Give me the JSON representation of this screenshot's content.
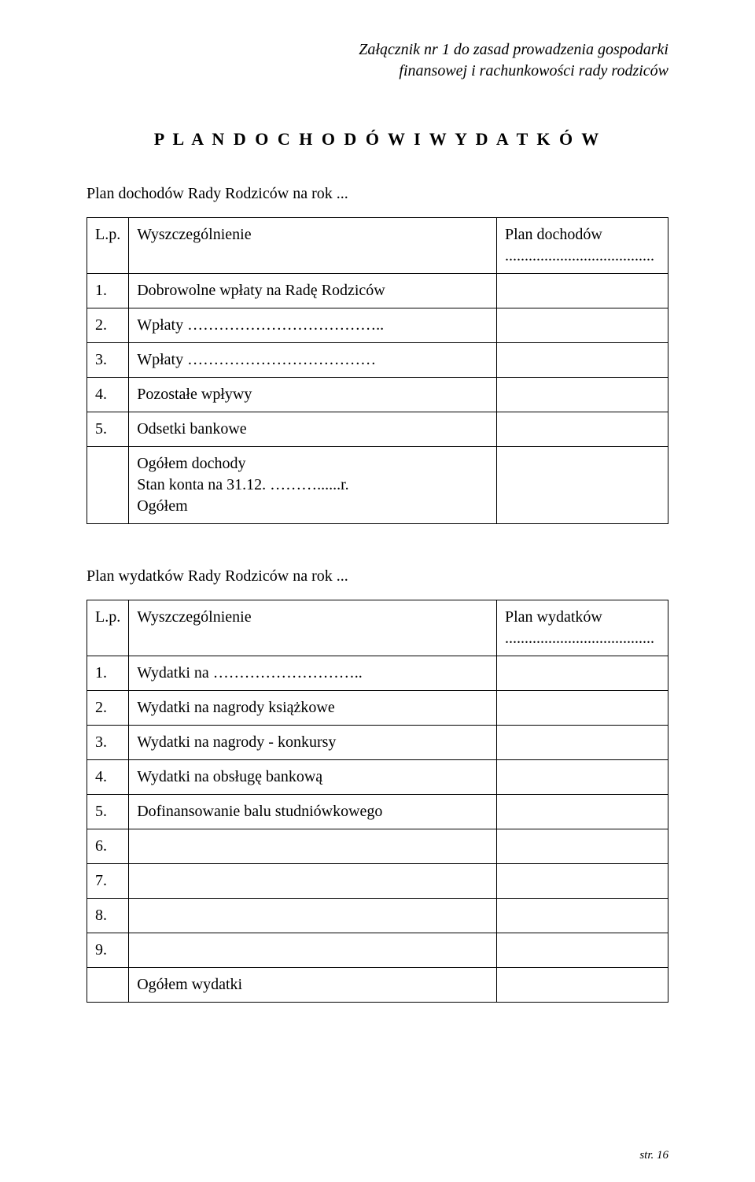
{
  "header": {
    "line1": "Załącznik nr 1 do zasad prowadzenia gospodarki",
    "line2": "finansowej i rachunkowości rady rodziców"
  },
  "title": "P L A N   D O C H O D Ó W   I   W Y D A T K Ó W",
  "income_section": {
    "intro": "Plan dochodów Rady Rodziców na rok ...",
    "header": {
      "lp": "L.p.",
      "desc": "Wyszczególnienie",
      "amount_line1": "Plan dochodów",
      "amount_line2": "......................................"
    },
    "rows": [
      {
        "lp": "1.",
        "desc": "Dobrowolne wpłaty na Radę Rodziców"
      },
      {
        "lp": "2.",
        "desc": "Wpłaty ……………………………….."
      },
      {
        "lp": "3.",
        "desc": "Wpłaty ………………………………"
      },
      {
        "lp": "4.",
        "desc": "Pozostałe wpływy"
      },
      {
        "lp": "5.",
        "desc": "Odsetki bankowe"
      }
    ],
    "summary": {
      "line1": "Ogółem dochody",
      "line2": "Stan konta na 31.12. ………......r.",
      "line3": "Ogółem"
    }
  },
  "expense_section": {
    "intro": "Plan wydatków Rady Rodziców na rok ...",
    "header": {
      "lp": "L.p.",
      "desc": "Wyszczególnienie",
      "amount_line1": "Plan wydatków",
      "amount_line2": "......................................"
    },
    "rows": [
      {
        "lp": "1.",
        "desc": "Wydatki na ……………………….."
      },
      {
        "lp": "2.",
        "desc": "Wydatki na nagrody książkowe"
      },
      {
        "lp": "3.",
        "desc": "Wydatki na nagrody - konkursy"
      },
      {
        "lp": "4.",
        "desc": "Wydatki na obsługę bankową"
      },
      {
        "lp": "5.",
        "desc": "Dofinansowanie balu studniówkowego"
      },
      {
        "lp": "6.",
        "desc": ""
      },
      {
        "lp": "7.",
        "desc": ""
      },
      {
        "lp": "8.",
        "desc": ""
      },
      {
        "lp": "9.",
        "desc": ""
      }
    ],
    "summary": "Ogółem wydatki"
  },
  "footer": "str. 16"
}
